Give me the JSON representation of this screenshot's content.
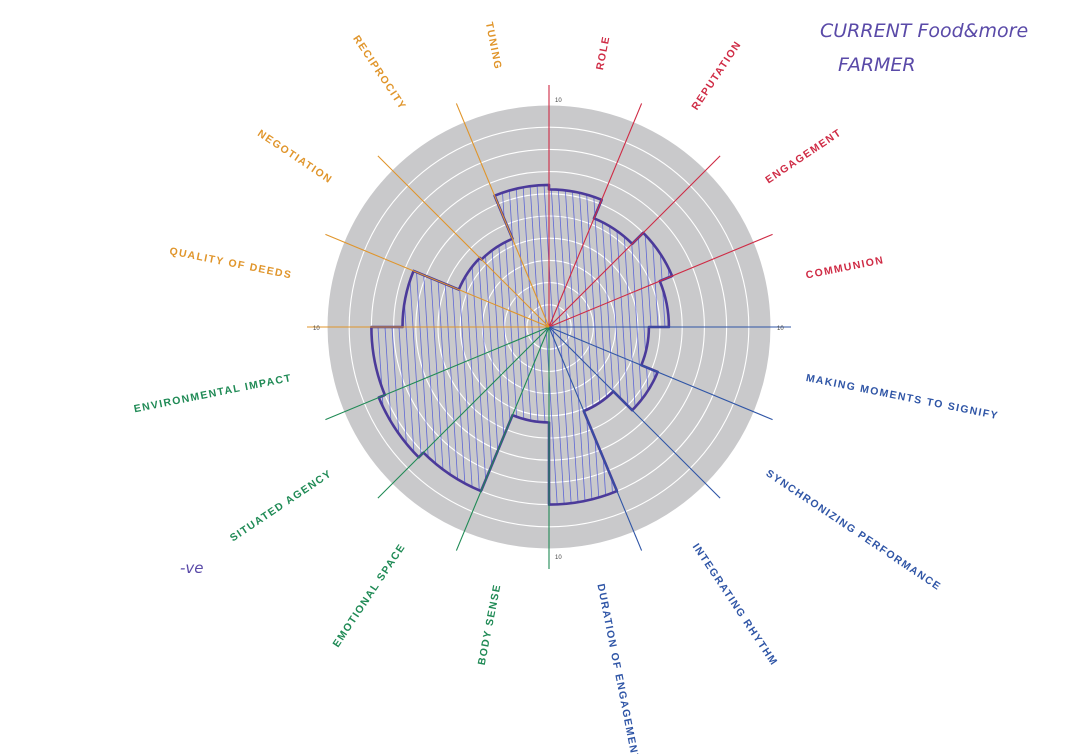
{
  "annotation": {
    "title_line1": "CURRENT Food&more",
    "title_line2": "FARMER",
    "side_note": "-ve"
  },
  "chart_data": {
    "type": "radar-sector",
    "scale_max": 10,
    "scale_label": "10",
    "rings": 10,
    "colors": {
      "disc": "#c9c9cb",
      "ring": "#ffffff",
      "fill_outline": "#4b3a9a",
      "hatch": "#4d57d6",
      "orange": "#e0952b",
      "red": "#cf2b45",
      "blue": "#2f55a6",
      "green": "#1f8a55"
    },
    "axes": [
      {
        "label": "ROLE",
        "group": "red",
        "value": 6.2
      },
      {
        "label": "REPUTATION",
        "group": "red",
        "value": 5.3
      },
      {
        "label": "ENGAGEMENT",
        "group": "red",
        "value": 6.0
      },
      {
        "label": "COMMUNION",
        "group": "red",
        "value": 5.4
      },
      {
        "label": "MAKING MOMENTS TO SIGNIFY",
        "group": "blue",
        "value": 4.5
      },
      {
        "label": "SYNCHRONIZING PERFORMANCE",
        "group": "blue",
        "value": 5.3
      },
      {
        "label": "INTEGRATING RHYTHM",
        "group": "blue",
        "value": 4.1
      },
      {
        "label": "DURATION OF ENGAGEMENT",
        "group": "blue",
        "value": 8.0
      },
      {
        "label": "BODY SENSE",
        "group": "green",
        "value": 4.3
      },
      {
        "label": "EMOTIONAL SPACE",
        "group": "green",
        "value": 8.0
      },
      {
        "label": "SITUATED AGENCY",
        "group": "green",
        "value": 8.3
      },
      {
        "label": "ENVIRONMENTAL IMPACT",
        "group": "green",
        "value": 8.0
      },
      {
        "label": "QUALITY OF DEEDS",
        "group": "orange",
        "value": 6.6
      },
      {
        "label": "NEGOTIATION",
        "group": "orange",
        "value": 4.4
      },
      {
        "label": "RECIPROCITY",
        "group": "orange",
        "value": 4.3
      },
      {
        "label": "TUNING",
        "group": "orange",
        "value": 6.4
      }
    ]
  }
}
